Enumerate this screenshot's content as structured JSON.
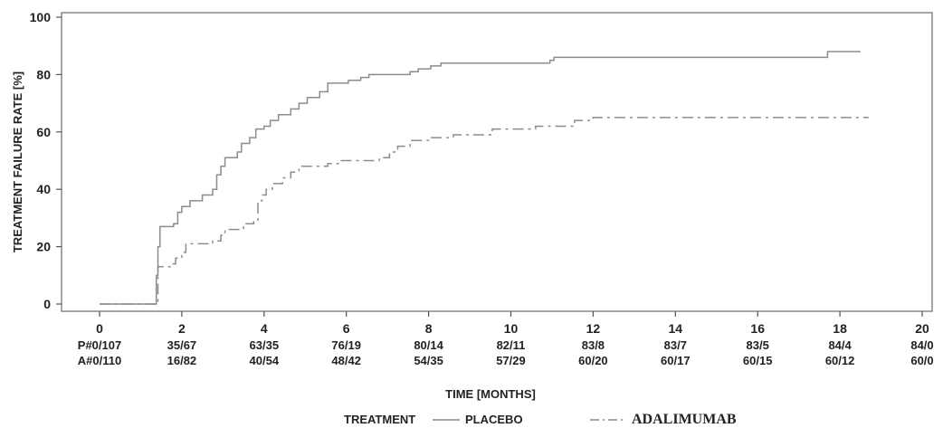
{
  "chart_data": {
    "type": "line",
    "ylabel": "TREATMENT FAILURE RATE [%]",
    "xlabel": "TIME [MONTHS]",
    "xlim": [
      0,
      20
    ],
    "ylim": [
      0,
      100
    ],
    "x_ticks": [
      "0",
      "2",
      "4",
      "6",
      "8",
      "10",
      "12",
      "14",
      "16",
      "18",
      "20"
    ],
    "y_ticks": [
      "0",
      "20",
      "40",
      "60",
      "80",
      "100"
    ],
    "grid": false,
    "interpolation": "step",
    "series": [
      {
        "name": "PLACEBO",
        "style": "solid",
        "color": "#8c8c8c",
        "points": [
          [
            0,
            0
          ],
          [
            1.35,
            0
          ],
          [
            1.38,
            10
          ],
          [
            1.42,
            20
          ],
          [
            1.47,
            27
          ],
          [
            1.8,
            28
          ],
          [
            1.9,
            32
          ],
          [
            2.0,
            34
          ],
          [
            2.2,
            36
          ],
          [
            2.5,
            38
          ],
          [
            2.75,
            40
          ],
          [
            2.85,
            45
          ],
          [
            2.95,
            48
          ],
          [
            3.05,
            51
          ],
          [
            3.35,
            53
          ],
          [
            3.45,
            56
          ],
          [
            3.65,
            58
          ],
          [
            3.8,
            61
          ],
          [
            4.0,
            62
          ],
          [
            4.15,
            64
          ],
          [
            4.35,
            66
          ],
          [
            4.65,
            68
          ],
          [
            4.85,
            70
          ],
          [
            5.05,
            72
          ],
          [
            5.35,
            74
          ],
          [
            5.55,
            77
          ],
          [
            6.05,
            78
          ],
          [
            6.35,
            79
          ],
          [
            6.55,
            80
          ],
          [
            7.55,
            81
          ],
          [
            7.75,
            82
          ],
          [
            8.05,
            83
          ],
          [
            8.3,
            84
          ],
          [
            10.95,
            85
          ],
          [
            11.05,
            86
          ],
          [
            17.6,
            86
          ],
          [
            17.7,
            88
          ],
          [
            18.5,
            88
          ]
        ]
      },
      {
        "name": "ADALIMUMAB",
        "style": "dash-dot",
        "color": "#8c8c8c",
        "points": [
          [
            0,
            0
          ],
          [
            1.35,
            0
          ],
          [
            1.42,
            13
          ],
          [
            1.75,
            14
          ],
          [
            1.85,
            16
          ],
          [
            2.0,
            18
          ],
          [
            2.1,
            21
          ],
          [
            2.75,
            22
          ],
          [
            2.95,
            24
          ],
          [
            3.05,
            26
          ],
          [
            3.5,
            28
          ],
          [
            3.75,
            29
          ],
          [
            3.85,
            36
          ],
          [
            3.95,
            38
          ],
          [
            4.05,
            40
          ],
          [
            4.2,
            42
          ],
          [
            4.45,
            44
          ],
          [
            4.65,
            46
          ],
          [
            4.85,
            48
          ],
          [
            5.55,
            49
          ],
          [
            5.85,
            50
          ],
          [
            6.8,
            51
          ],
          [
            7.05,
            53
          ],
          [
            7.25,
            55
          ],
          [
            7.55,
            57
          ],
          [
            8.05,
            58
          ],
          [
            8.6,
            59
          ],
          [
            9.55,
            61
          ],
          [
            10.6,
            62
          ],
          [
            11.55,
            64
          ],
          [
            12.0,
            65
          ],
          [
            18.7,
            65
          ]
        ]
      }
    ],
    "risk_table": {
      "rows": [
        {
          "label": "P#0/107",
          "values": [
            "35/67",
            "63/35",
            "76/19",
            "80/14",
            "82/11",
            "83/8",
            "83/7",
            "83/5",
            "84/4",
            "84/0"
          ]
        },
        {
          "label": "A#0/110",
          "values": [
            "16/82",
            "40/54",
            "48/42",
            "54/35",
            "57/29",
            "60/20",
            "60/17",
            "60/15",
            "60/12",
            "60/0"
          ]
        }
      ]
    },
    "legend": {
      "title": "TREATMENT",
      "placement": "bottom",
      "entries": [
        "PLACEBO",
        "ADALIMUMAB"
      ]
    }
  }
}
